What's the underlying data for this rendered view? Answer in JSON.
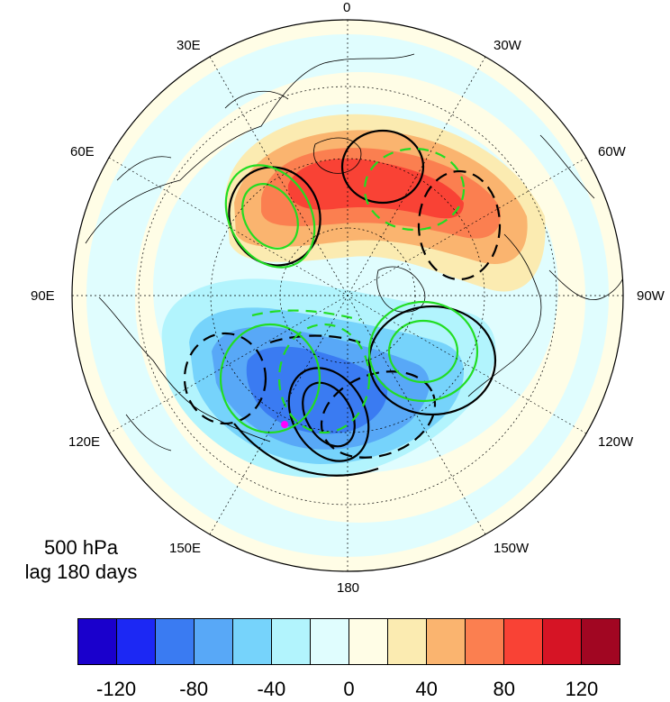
{
  "map": {
    "projection": "north polar stereographic",
    "longitude_labels": [
      "0",
      "30W",
      "60W",
      "90W",
      "120W",
      "150W",
      "180",
      "150E",
      "120E",
      "90E",
      "60E",
      "30E"
    ],
    "shading_field": "500 hPa geopotential height anomaly",
    "contour_colors": {
      "black": "#000000",
      "green": "#22dd22"
    },
    "marker_color": "#ff00ff"
  },
  "panel": {
    "level": "500 hPa",
    "lag": "lag 180 days"
  },
  "colorbar": {
    "colors": [
      "#1a00cc",
      "#1c28f4",
      "#3a7bf2",
      "#58a8f7",
      "#76d3fb",
      "#b2f4fd",
      "#e0fdfe",
      "#fffde6",
      "#fbebb1",
      "#fab46f",
      "#fb7f50",
      "#f94235",
      "#d61425",
      "#a10622"
    ],
    "tick_labels": [
      "-120",
      "-80",
      "-40",
      "0",
      "40",
      "80",
      "120"
    ],
    "tick_values": [
      -120,
      -80,
      -40,
      0,
      40,
      80,
      120
    ]
  }
}
